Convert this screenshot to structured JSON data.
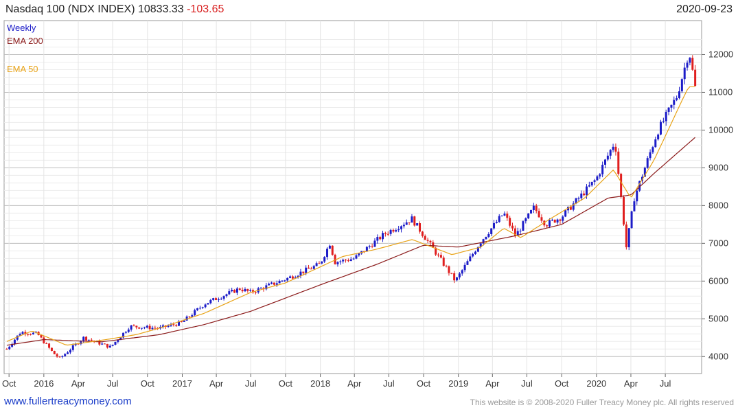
{
  "header": {
    "title": "Nasdaq 100 (NDX INDEX)",
    "last_value": "10833.33",
    "change": "-103.65",
    "date": "2020-09-23"
  },
  "footer": {
    "link_text": "www.fullertreacymoney.com",
    "copyright": "This website is © 2008-2020 Fuller Treacy Money plc. All rights reserved"
  },
  "colors": {
    "up_candle": "#1c1cc8",
    "down_candle": "#e01e1e",
    "ema200": "#8b1a1a",
    "ema50": "#e8a317",
    "grid": "#d9d9d9"
  },
  "chart_data": {
    "type": "candlestick",
    "interval_label": "Weekly",
    "x_tick_labels": [
      "Oct",
      "2016",
      "Apr",
      "Jul",
      "Oct",
      "2017",
      "Apr",
      "Jul",
      "Oct",
      "2018",
      "Apr",
      "Jul",
      "Oct",
      "2019",
      "Apr",
      "Jul",
      "Oct",
      "2020",
      "Apr",
      "Jul"
    ],
    "y_tick_labels": [
      "4000",
      "5000",
      "6000",
      "7000",
      "8000",
      "9000",
      "10000",
      "11000",
      "12000"
    ],
    "y_ticks": [
      4000,
      5000,
      6000,
      7000,
      8000,
      9000,
      10000,
      11000,
      12000
    ],
    "ylim": [
      3550,
      12900
    ],
    "grid": true,
    "legend_position": "top-left",
    "series": [
      {
        "name": "EMA 200",
        "color": "#8b1a1a",
        "kind": "line",
        "points": [
          [
            "2015-09-25",
            4300
          ],
          [
            "2016-01-01",
            4450
          ],
          [
            "2016-06-01",
            4390
          ],
          [
            "2016-11-01",
            4580
          ],
          [
            "2017-03-01",
            4850
          ],
          [
            "2017-07-01",
            5200
          ],
          [
            "2018-01-01",
            5900
          ],
          [
            "2018-06-01",
            6450
          ],
          [
            "2018-10-01",
            6950
          ],
          [
            "2019-01-01",
            6900
          ],
          [
            "2019-06-01",
            7200
          ],
          [
            "2019-10-01",
            7500
          ],
          [
            "2020-02-01",
            8200
          ],
          [
            "2020-04-01",
            8280
          ],
          [
            "2020-06-01",
            8850
          ],
          [
            "2020-09-23",
            9850
          ]
        ]
      },
      {
        "name": "EMA 50",
        "color": "#e8a317",
        "kind": "line",
        "points": [
          [
            "2015-09-25",
            4400
          ],
          [
            "2015-12-01",
            4680
          ],
          [
            "2016-03-01",
            4300
          ],
          [
            "2016-06-01",
            4430
          ],
          [
            "2016-09-01",
            4580
          ],
          [
            "2016-11-01",
            4750
          ],
          [
            "2017-03-01",
            5150
          ],
          [
            "2017-07-01",
            5700
          ],
          [
            "2017-10-01",
            5950
          ],
          [
            "2018-03-01",
            6650
          ],
          [
            "2018-06-01",
            6850
          ],
          [
            "2018-09-01",
            7100
          ],
          [
            "2018-12-15",
            6700
          ],
          [
            "2019-03-01",
            6900
          ],
          [
            "2019-05-01",
            7400
          ],
          [
            "2019-06-15",
            7150
          ],
          [
            "2019-09-01",
            7650
          ],
          [
            "2019-12-01",
            8200
          ],
          [
            "2020-02-15",
            8950
          ],
          [
            "2020-04-01",
            8200
          ],
          [
            "2020-06-01",
            9200
          ],
          [
            "2020-08-15",
            10800
          ],
          [
            "2020-09-01",
            11150
          ],
          [
            "2020-09-23",
            11150
          ]
        ]
      }
    ],
    "price_path": [
      [
        "2015-09-25",
        4200
      ],
      [
        "2015-11-01",
        4650
      ],
      [
        "2015-12-15",
        4600
      ],
      [
        "2016-01-25",
        4100
      ],
      [
        "2016-02-12",
        3950
      ],
      [
        "2016-04-15",
        4500
      ],
      [
        "2016-06-25",
        4250
      ],
      [
        "2016-08-15",
        4800
      ],
      [
        "2016-11-01",
        4750
      ],
      [
        "2016-12-31",
        4900
      ],
      [
        "2017-03-01",
        5400
      ],
      [
        "2017-06-01",
        5800
      ],
      [
        "2017-07-01",
        5700
      ],
      [
        "2017-10-01",
        6050
      ],
      [
        "2017-12-31",
        6450
      ],
      [
        "2018-01-26",
        7000
      ],
      [
        "2018-02-09",
        6500
      ],
      [
        "2018-04-01",
        6600
      ],
      [
        "2018-06-20",
        7250
      ],
      [
        "2018-08-31",
        7650
      ],
      [
        "2018-10-30",
        6800
      ],
      [
        "2018-12-24",
        6000
      ],
      [
        "2019-03-01",
        7050
      ],
      [
        "2019-05-01",
        7800
      ],
      [
        "2019-06-01",
        7200
      ],
      [
        "2019-07-20",
        7950
      ],
      [
        "2019-08-20",
        7500
      ],
      [
        "2019-10-01",
        7700
      ],
      [
        "2019-12-31",
        8700
      ],
      [
        "2020-02-19",
        9700
      ],
      [
        "2020-03-20",
        6900
      ],
      [
        "2020-04-10",
        8200
      ],
      [
        "2020-06-10",
        9950
      ],
      [
        "2020-08-01",
        10900
      ],
      [
        "2020-09-02",
        12100
      ],
      [
        "2020-09-23",
        10833
      ]
    ]
  }
}
